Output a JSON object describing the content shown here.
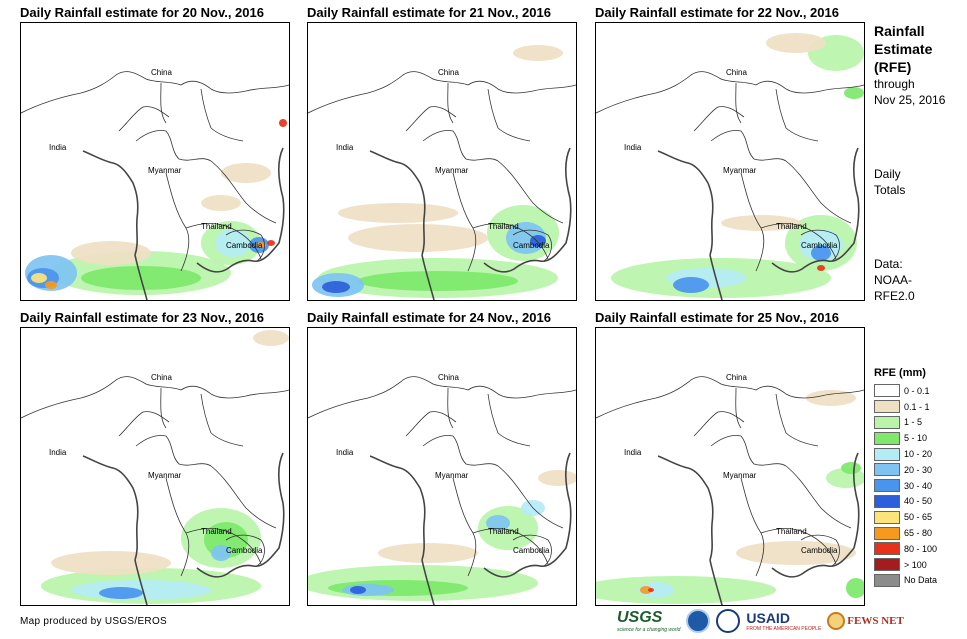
{
  "panels": [
    {
      "title": "Daily Rainfall estimate for 20 Nov., 2016"
    },
    {
      "title": "Daily Rainfall estimate for 21 Nov., 2016"
    },
    {
      "title": "Daily Rainfall estimate for 22 Nov., 2016"
    },
    {
      "title": "Daily Rainfall estimate for 23 Nov., 2016"
    },
    {
      "title": "Daily Rainfall estimate for 24 Nov., 2016"
    },
    {
      "title": "Daily Rainfall estimate for 25 Nov., 2016"
    }
  ],
  "map_labels": {
    "china": "China",
    "india": "India",
    "myanmar": "Myanmar",
    "thailand": "Thailand",
    "cambodia": "Cambodia"
  },
  "sidebar": {
    "title_line1": "Rainfall",
    "title_line2": "Estimate",
    "title_line3": "(RFE)",
    "through": "through",
    "through_date": "Nov 25, 2016",
    "totals_line1": "Daily",
    "totals_line2": "Totals",
    "data_line1": "Data:",
    "data_line2": "NOAA-",
    "data_line3": "RFE2.0"
  },
  "legend": {
    "title": "RFE (mm)",
    "items": [
      {
        "label": "0 - 0.1",
        "color": "#ffffff"
      },
      {
        "label": "0.1 - 1",
        "color": "#efe0c4"
      },
      {
        "label": "1 - 5",
        "color": "#b9f4a9"
      },
      {
        "label": "5 - 10",
        "color": "#7de86a"
      },
      {
        "label": "10 - 20",
        "color": "#b4ecf6"
      },
      {
        "label": "20 - 30",
        "color": "#7ec3f2"
      },
      {
        "label": "30 - 40",
        "color": "#4a94ee"
      },
      {
        "label": "40 - 50",
        "color": "#2c5fdb"
      },
      {
        "label": "50 - 65",
        "color": "#fde47a"
      },
      {
        "label": "65 - 80",
        "color": "#f59a1f"
      },
      {
        "label": "80 - 100",
        "color": "#e8311b"
      },
      {
        "label": "> 100",
        "color": "#a51c1c"
      },
      {
        "label": "No Data",
        "color": "#8c8c8c"
      }
    ]
  },
  "credit": "Map produced by USGS/EROS",
  "logos": {
    "usgs": "USGS",
    "usgs_tagline": "science for a changing world",
    "usaid": "USAID",
    "usaid_tagline": "FROM THE AMERICAN PEOPLE",
    "fews": "FEWS NET"
  }
}
